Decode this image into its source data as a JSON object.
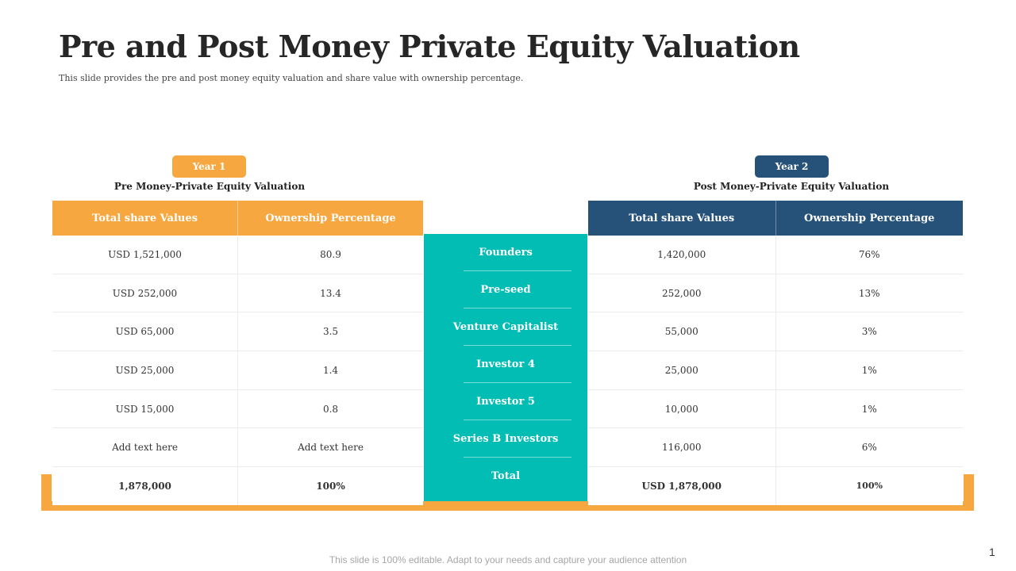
{
  "title": "Pre and Post Money Private Equity Valuation",
  "subtitle": "This slide provides the pre and post money equity valuation and share value with ownership percentage.",
  "colors": {
    "orange": "#f7a73f",
    "navy": "#26527a",
    "teal": "#02bdb4"
  },
  "pre": {
    "badge": "Year 1",
    "label": "Pre Money-Private  Equity Valuation",
    "headers": [
      "Total share Values",
      "Ownership  Percentage"
    ],
    "rows": [
      [
        "USD 1,521,000",
        "80.9"
      ],
      [
        "USD 252,000",
        "13.4"
      ],
      [
        "USD 65,000",
        "3.5"
      ],
      [
        "USD 25,000",
        "1.4"
      ],
      [
        "USD 15,000",
        "0.8"
      ],
      [
        "Add text  here",
        "Add text  here"
      ],
      [
        "1,878,000",
        "100%"
      ]
    ]
  },
  "post": {
    "badge": "Year 2",
    "label": "Post Money-Private  Equity Valuation",
    "headers": [
      "Total share Values",
      "Ownership  Percentage"
    ],
    "rows": [
      [
        "1,420,000",
        "76%"
      ],
      [
        "252,000",
        "13%"
      ],
      [
        "55,000",
        "3%"
      ],
      [
        "25,000",
        "1%"
      ],
      [
        "10,000",
        "1%"
      ],
      [
        "116,000",
        "6%"
      ],
      [
        "USD 1,878,000",
        "100%"
      ]
    ]
  },
  "categories": [
    "Founders",
    "Pre-seed",
    "Venture Capitalist",
    "Investor 4",
    "Investor 5",
    "Series B Investors",
    "Total"
  ],
  "footer": "This slide is 100%  editable. Adapt to your needs and capture your audience  attention",
  "page_number": "1"
}
